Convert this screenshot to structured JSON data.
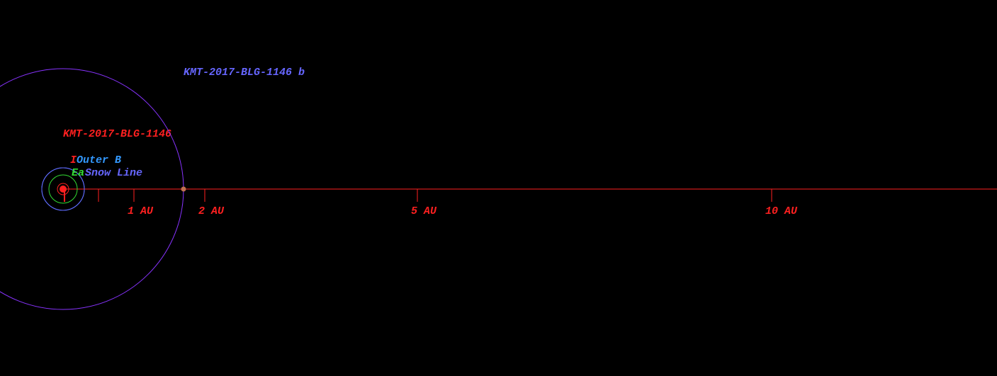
{
  "system": {
    "star": {
      "name": "KMT-2017-BLG-1146",
      "color": "#ff2020"
    },
    "planet": {
      "name": "KMT-2017-BLG-1146 b",
      "orbit_au": 1.7,
      "color": "#6666ff",
      "orbit_color": "#8833ff",
      "dot_color": "#c07050"
    },
    "zones": [
      {
        "label": "I",
        "radius_au": 0.08,
        "color": "#ff2020"
      },
      {
        "label": "Outer B",
        "radius_au": 0.3,
        "color": "#3399ff"
      },
      {
        "label": "Ea",
        "radius_au": 0.2,
        "color": "#33dd33"
      },
      {
        "label": "Snow Line",
        "radius_au": 0.3,
        "color": "#6666ff"
      }
    ],
    "scale": {
      "ticks": [
        {
          "value": 1,
          "label": "1 AU"
        },
        {
          "value": 2,
          "label": "2 AU"
        },
        {
          "value": 5,
          "label": "5 AU"
        },
        {
          "value": 10,
          "label": "10 AU"
        }
      ],
      "minor_ticks": [
        0.5
      ],
      "color": "#ff2020"
    }
  }
}
